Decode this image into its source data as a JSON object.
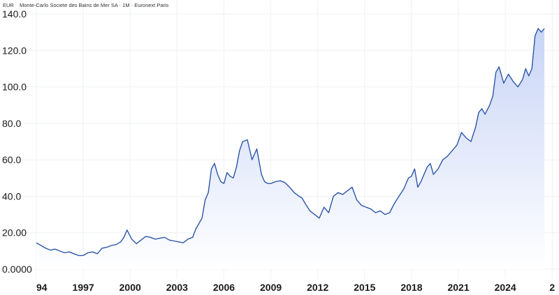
{
  "chart_data": {
    "type": "area",
    "title": "Monte-Carlo Societe des Bains de Mer SA · 1M · Euronext Paris",
    "ylabel": "EUR",
    "xlabel": "",
    "ylim": [
      0,
      140
    ],
    "xlim": [
      1994.0,
      2027.3
    ],
    "y_ticks": [
      "0.0000",
      "20.00",
      "40.0",
      "60.0",
      "80.0",
      "100.0",
      "120.0",
      "140.0"
    ],
    "x_ticks": [
      "94",
      "1997",
      "2000",
      "2003",
      "2006",
      "2009",
      "2012",
      "2015",
      "2018",
      "2021",
      "2024",
      "2"
    ],
    "grid": true,
    "colors": {
      "line": "#2b56a8",
      "fill_top": "#c6d3f6",
      "fill_bottom": "#ffffff"
    },
    "series": [
      {
        "x": [
          1994.0,
          1994.3,
          1994.6,
          1994.9,
          1995.2,
          1995.5,
          1995.8,
          1996.1,
          1996.4,
          1996.7,
          1997.0,
          1997.3,
          1997.6,
          1997.9,
          1998.2,
          1998.5,
          1998.8,
          1999.1,
          1999.4,
          1999.6,
          1999.8,
          2000.1,
          2000.4,
          2000.7,
          2001.0,
          2001.3,
          2001.6,
          2001.9,
          2002.2,
          2002.5,
          2002.8,
          2003.1,
          2003.4,
          2003.7,
          2004.0,
          2004.2,
          2004.4,
          2004.6,
          2004.8,
          2005.0,
          2005.2,
          2005.4,
          2005.6,
          2005.8,
          2006.0,
          2006.2,
          2006.4,
          2006.6,
          2006.8,
          2007.0,
          2007.2,
          2007.5,
          2007.8,
          2008.1,
          2008.4,
          2008.6,
          2008.8,
          2009.0,
          2009.3,
          2009.6,
          2009.9,
          2010.2,
          2010.5,
          2010.8,
          2011.0,
          2011.2,
          2011.5,
          2011.8,
          2012.1,
          2012.4,
          2012.7,
          2013.0,
          2013.3,
          2013.6,
          2013.9,
          2014.2,
          2014.5,
          2014.8,
          2015.1,
          2015.4,
          2015.7,
          2016.0,
          2016.3,
          2016.6,
          2016.9,
          2017.2,
          2017.5,
          2017.8,
          2018.0,
          2018.2,
          2018.4,
          2018.6,
          2018.8,
          2019.0,
          2019.2,
          2019.4,
          2019.7,
          2020.0,
          2020.3,
          2020.6,
          2020.9,
          2021.2,
          2021.5,
          2021.8,
          2022.1,
          2022.3,
          2022.5,
          2022.7,
          2023.0,
          2023.2,
          2023.4,
          2023.6,
          2023.9,
          2024.2,
          2024.5,
          2024.8,
          2025.1,
          2025.3,
          2025.5,
          2025.7,
          2025.9,
          2026.1,
          2026.3,
          2026.5
        ],
        "values": [
          14.5,
          13.0,
          11.5,
          10.5,
          11.0,
          10.0,
          9.0,
          9.5,
          8.5,
          7.5,
          7.5,
          9.0,
          9.5,
          8.5,
          11.5,
          12.0,
          13.0,
          13.5,
          15.0,
          17.5,
          21.5,
          16.5,
          14.0,
          16.0,
          18.0,
          17.5,
          16.5,
          17.0,
          17.5,
          16.0,
          15.5,
          15.0,
          14.5,
          16.5,
          17.5,
          22.0,
          25.0,
          28.0,
          38.0,
          42.0,
          55.0,
          58.0,
          52.0,
          48.0,
          47.0,
          53.0,
          51.0,
          50.0,
          56.0,
          65.0,
          70.0,
          71.0,
          60.0,
          66.0,
          52.0,
          48.0,
          47.0,
          47.0,
          48.0,
          48.5,
          47.5,
          45.0,
          42.0,
          40.0,
          39.0,
          36.0,
          32.0,
          30.0,
          28.0,
          34.0,
          31.0,
          40.0,
          42.0,
          41.0,
          43.0,
          45.0,
          38.0,
          35.0,
          34.0,
          33.0,
          31.0,
          32.0,
          30.0,
          31.0,
          36.0,
          40.0,
          44.0,
          50.0,
          51.0,
          55.0,
          45.0,
          48.0,
          52.0,
          56.0,
          58.0,
          52.0,
          55.0,
          60.0,
          62.0,
          65.0,
          68.0,
          75.0,
          72.0,
          70.0,
          78.0,
          86.0,
          88.0,
          85.0,
          90.0,
          95.0,
          108.0,
          111.0,
          102.0,
          107.0,
          103.0,
          100.0,
          104.0,
          110.0,
          106.0,
          110.0,
          128.0,
          132.0,
          130.0,
          132.0
        ]
      }
    ]
  }
}
